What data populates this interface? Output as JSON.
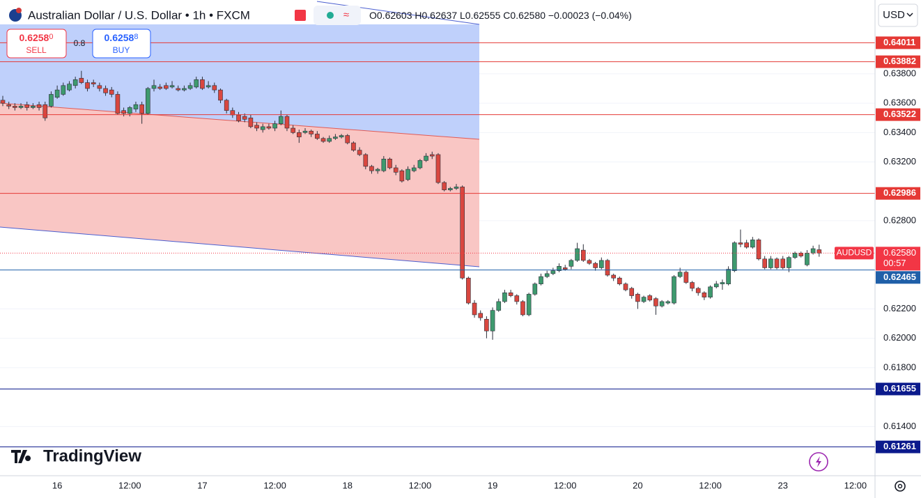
{
  "chart_data": {
    "type": "candlestick",
    "title": "Australian Dollar / U.S. Dollar • 1h • FXCM",
    "ohlc": [
      "O0.62603",
      "H0.62637",
      "L0.62555",
      "C0.62580",
      "−0.00023 (−0.04%)"
    ],
    "up_color": "#3e9a6e",
    "down_color": "#d9473f",
    "categories": [
      null,
      null,
      null,
      null,
      null,
      null,
      null,
      null,
      null,
      "16",
      null,
      null,
      null,
      null,
      null,
      null,
      null,
      null,
      null,
      null,
      null,
      "12:00",
      null,
      null,
      null,
      null,
      null,
      null,
      null,
      null,
      null,
      null,
      null,
      "17",
      null,
      null,
      null,
      null,
      null,
      null,
      null,
      null,
      null,
      null,
      null,
      "12:00",
      null,
      null,
      null,
      null,
      null,
      null,
      null,
      null,
      null,
      null,
      null,
      "18",
      null,
      null,
      null,
      null,
      null,
      null,
      null,
      null,
      null,
      null,
      null,
      "12:00",
      null,
      null,
      null,
      null,
      null,
      null,
      null,
      null,
      null,
      null,
      null,
      "19",
      null,
      null,
      null,
      null,
      null,
      null,
      null,
      null,
      null,
      null,
      null,
      "12:00",
      null,
      null,
      null,
      null,
      null,
      null,
      null,
      null,
      null,
      null,
      null,
      "20",
      null,
      null,
      null,
      null,
      null,
      null,
      null,
      null,
      null,
      null,
      null,
      "12:00",
      null,
      null,
      null,
      null,
      null,
      null,
      null,
      null,
      null,
      null,
      null,
      "23",
      null,
      null,
      null,
      null,
      null,
      null,
      null,
      null,
      null,
      null,
      null,
      "12:00"
    ],
    "open": [
      0.6362,
      0.6359,
      0.6358,
      0.6357,
      0.6359,
      0.6357,
      0.6359,
      0.6359,
      0.6358,
      0.6364,
      0.6366,
      0.6369,
      0.6372,
      0.6377,
      0.6374,
      0.6374,
      0.6372,
      0.637,
      0.6369,
      0.6366,
      0.6355,
      0.6353,
      0.6356,
      0.6359,
      0.6353,
      0.637,
      0.6371,
      0.6372,
      0.6371,
      0.637,
      0.6369,
      0.637,
      0.6371,
      0.6376,
      0.6371,
      0.6372,
      0.6369,
      0.6362,
      0.6355,
      0.6352,
      0.6351,
      0.635,
      0.6345,
      0.6342,
      0.6344,
      0.6343,
      0.6346,
      0.6351,
      0.6343,
      0.634,
      0.634,
      0.6341,
      0.6339,
      0.6336,
      0.6334,
      0.6336,
      0.6337,
      0.6338,
      0.6333,
      0.6328,
      0.6325,
      0.6317,
      0.6314,
      0.6314,
      0.6322,
      0.6316,
      0.6314,
      0.6308,
      0.6314,
      0.6316,
      0.6321,
      0.6325,
      0.6325,
      0.6306,
      0.6301,
      0.6302,
      0.6303,
      0.6241,
      0.6224,
      0.6217,
      0.6213,
      0.6205,
      0.6219,
      0.6225,
      0.6231,
      0.6229,
      0.6225,
      0.6216,
      0.623,
      0.6237,
      0.6242,
      0.6244,
      0.6246,
      0.6248,
      0.6249,
      0.6253,
      0.626,
      0.6253,
      0.6251,
      0.6248,
      0.6253,
      0.6243,
      0.6241,
      0.6237,
      0.6234,
      0.623,
      0.6225,
      0.6229,
      0.6227,
      0.6222,
      0.6224,
      0.6224,
      0.6242,
      0.6245,
      0.6238,
      0.6234,
      0.6231,
      0.6228,
      0.6235,
      0.6237,
      0.6237,
      0.6246,
      0.6265,
      0.6265,
      0.6262,
      0.6267,
      0.6254,
      0.6248,
      0.6254,
      0.6254,
      0.6248,
      0.6255,
      0.6258,
      0.625,
      0.6258,
      0.62603,
      null,
      null,
      null,
      null,
      null,
      null
    ],
    "high": [
      0.6365,
      0.6361,
      0.636,
      0.636,
      0.6361,
      0.636,
      0.6361,
      0.6361,
      0.6368,
      0.6372,
      0.6374,
      0.6375,
      0.6378,
      0.6382,
      0.6376,
      0.6376,
      0.6374,
      0.6372,
      0.6371,
      0.6368,
      0.6357,
      0.6358,
      0.6361,
      0.6361,
      0.6371,
      0.6376,
      0.6373,
      0.6374,
      0.6375,
      0.6372,
      0.6372,
      0.6374,
      0.6378,
      0.6378,
      0.6375,
      0.6374,
      0.637,
      0.6363,
      0.6357,
      0.6354,
      0.6353,
      0.6352,
      0.6347,
      0.6346,
      0.6346,
      0.6348,
      0.6355,
      0.6352,
      0.6345,
      0.6342,
      0.6343,
      0.6342,
      0.6341,
      0.6337,
      0.6338,
      0.6339,
      0.6339,
      0.6339,
      0.6334,
      0.633,
      0.6326,
      0.6318,
      0.6316,
      0.6324,
      0.6323,
      0.6318,
      0.6315,
      0.6317,
      0.6318,
      0.6322,
      0.6326,
      0.6327,
      0.6326,
      0.6307,
      0.6303,
      0.6305,
      0.6304,
      0.6242,
      0.6226,
      0.6219,
      0.6215,
      0.6221,
      0.6227,
      0.6233,
      0.6233,
      0.623,
      0.6226,
      0.6231,
      0.6238,
      0.6244,
      0.6246,
      0.6248,
      0.6251,
      0.625,
      0.6254,
      0.6265,
      0.6264,
      0.6254,
      0.6252,
      0.6255,
      0.6254,
      0.6244,
      0.6242,
      0.6238,
      0.6235,
      0.6231,
      0.6229,
      0.623,
      0.6228,
      0.6226,
      0.6226,
      0.6243,
      0.6248,
      0.6246,
      0.6239,
      0.6235,
      0.6232,
      0.6236,
      0.6239,
      0.624,
      0.6249,
      0.6266,
      0.6274,
      0.6267,
      0.6269,
      0.6268,
      0.6256,
      0.6256,
      0.6255,
      0.6256,
      0.6256,
      0.6259,
      0.6259,
      0.626,
      0.6263,
      0.62637,
      null,
      null,
      null,
      null,
      null,
      null
    ],
    "low": [
      0.6358,
      0.6356,
      0.6355,
      0.6356,
      0.6355,
      0.6356,
      0.6355,
      0.6348,
      0.6357,
      0.6363,
      0.6365,
      0.6368,
      0.637,
      0.6373,
      0.6368,
      0.6371,
      0.6368,
      0.6365,
      0.6364,
      0.6352,
      0.6351,
      0.6351,
      0.6354,
      0.6346,
      0.6352,
      0.6368,
      0.6369,
      0.6369,
      0.637,
      0.6368,
      0.6368,
      0.6369,
      0.637,
      0.6369,
      0.637,
      0.6367,
      0.636,
      0.6353,
      0.635,
      0.6347,
      0.6347,
      0.6343,
      0.6341,
      0.634,
      0.6342,
      0.6341,
      0.6345,
      0.6341,
      0.6339,
      0.6333,
      0.6339,
      0.6337,
      0.6335,
      0.6333,
      0.6333,
      0.6335,
      0.6336,
      0.6332,
      0.6327,
      0.6324,
      0.6315,
      0.6312,
      0.6312,
      0.6313,
      0.6315,
      0.6311,
      0.6306,
      0.6307,
      0.6313,
      0.6315,
      0.632,
      0.6322,
      0.6305,
      0.63,
      0.63,
      0.6301,
      0.624,
      0.6223,
      0.6214,
      0.6212,
      0.62,
      0.6199,
      0.6218,
      0.6224,
      0.6228,
      0.6223,
      0.6215,
      0.6215,
      0.6229,
      0.6236,
      0.6241,
      0.6243,
      0.6245,
      0.6246,
      0.6247,
      0.6252,
      0.6252,
      0.625,
      0.6246,
      0.6247,
      0.6242,
      0.6239,
      0.6236,
      0.6232,
      0.6227,
      0.622,
      0.6224,
      0.6225,
      0.6216,
      0.6221,
      0.6223,
      0.6223,
      0.6241,
      0.6237,
      0.6232,
      0.6229,
      0.6226,
      0.6227,
      0.6234,
      0.6233,
      0.6236,
      0.6245,
      0.6262,
      0.6261,
      0.6261,
      0.6253,
      0.6247,
      0.6247,
      0.6247,
      0.6247,
      0.6245,
      0.6254,
      0.6255,
      0.6249,
      0.6257,
      0.62555,
      null,
      null,
      null,
      null,
      null,
      null
    ],
    "close": [
      0.636,
      0.6358,
      0.6357,
      0.6358,
      0.6357,
      0.6358,
      0.6357,
      0.635,
      0.6366,
      0.6369,
      0.6372,
      0.6373,
      0.6376,
      0.6374,
      0.637,
      0.6373,
      0.637,
      0.6367,
      0.6366,
      0.6353,
      0.6353,
      0.6357,
      0.6359,
      0.6353,
      0.637,
      0.6372,
      0.637,
      0.637,
      0.6372,
      0.6369,
      0.637,
      0.6372,
      0.6376,
      0.637,
      0.6372,
      0.6369,
      0.6362,
      0.6355,
      0.6352,
      0.6348,
      0.6349,
      0.6344,
      0.6343,
      0.6344,
      0.6343,
      0.6346,
      0.6351,
      0.6343,
      0.634,
      0.6337,
      0.6341,
      0.6339,
      0.6336,
      0.6334,
      0.6336,
      0.6337,
      0.6338,
      0.6333,
      0.6328,
      0.6325,
      0.6317,
      0.6314,
      0.6315,
      0.6322,
      0.6316,
      0.6313,
      0.6307,
      0.6315,
      0.6316,
      0.6321,
      0.6324,
      0.6324,
      0.6306,
      0.6301,
      0.6302,
      0.6303,
      0.6241,
      0.6224,
      0.6216,
      0.6214,
      0.6205,
      0.6219,
      0.6225,
      0.6231,
      0.6229,
      0.6225,
      0.6216,
      0.623,
      0.6237,
      0.6242,
      0.6244,
      0.6246,
      0.6249,
      0.6247,
      0.6253,
      0.6261,
      0.6253,
      0.6251,
      0.6248,
      0.6253,
      0.6243,
      0.6241,
      0.6237,
      0.6233,
      0.6229,
      0.6225,
      0.6228,
      0.6226,
      0.6222,
      0.6225,
      0.6225,
      0.6242,
      0.6245,
      0.6238,
      0.6234,
      0.6231,
      0.6228,
      0.6235,
      0.6237,
      0.6238,
      0.6247,
      0.6265,
      0.6264,
      0.6262,
      0.6267,
      0.6254,
      0.6248,
      0.6254,
      0.6248,
      0.6248,
      0.6255,
      0.6258,
      0.6256,
      0.6258,
      0.6261,
      0.6258,
      null,
      null,
      null,
      null,
      null,
      null
    ],
    "ylim": [
      0.61065,
      0.64302
    ],
    "yticks": [
      {
        "value": 0.638,
        "label": "0.63800"
      },
      {
        "value": 0.636,
        "label": "0.63600"
      },
      {
        "value": 0.634,
        "label": "0.63400"
      },
      {
        "value": 0.632,
        "label": "0.63200"
      },
      {
        "value": 0.628,
        "label": "0.62800"
      },
      {
        "value": 0.622,
        "label": "0.62200"
      },
      {
        "value": 0.62,
        "label": "0.62000"
      },
      {
        "value": 0.618,
        "label": "0.61800"
      },
      {
        "value": 0.614,
        "label": "0.61400"
      }
    ],
    "grid": true,
    "levels": [
      {
        "value": 0.64011,
        "color": "#e53935"
      },
      {
        "value": 0.63882,
        "color": "#e53935"
      },
      {
        "value": 0.63522,
        "color": "#e53935"
      },
      {
        "value": 0.62986,
        "color": "#e53935"
      },
      {
        "value": 0.62465,
        "color": "#1f5fa8"
      },
      {
        "value": 0.61655,
        "color": "#0b1a8c"
      },
      {
        "value": 0.61261,
        "color": "#0b1a8c"
      }
    ],
    "price_tag": {
      "symbol": "AUDUSD",
      "label": "0.62580",
      "countdown": "00:57",
      "color": "#f23645"
    }
  },
  "toolbar": {
    "currency": "USD",
    "logo": "TradingView",
    "sell": {
      "price": "0.6258",
      "pip": "0",
      "label": "SELL"
    },
    "spread": "0.8",
    "buy": {
      "price": "0.6258",
      "pip": "8",
      "label": "BUY"
    }
  }
}
